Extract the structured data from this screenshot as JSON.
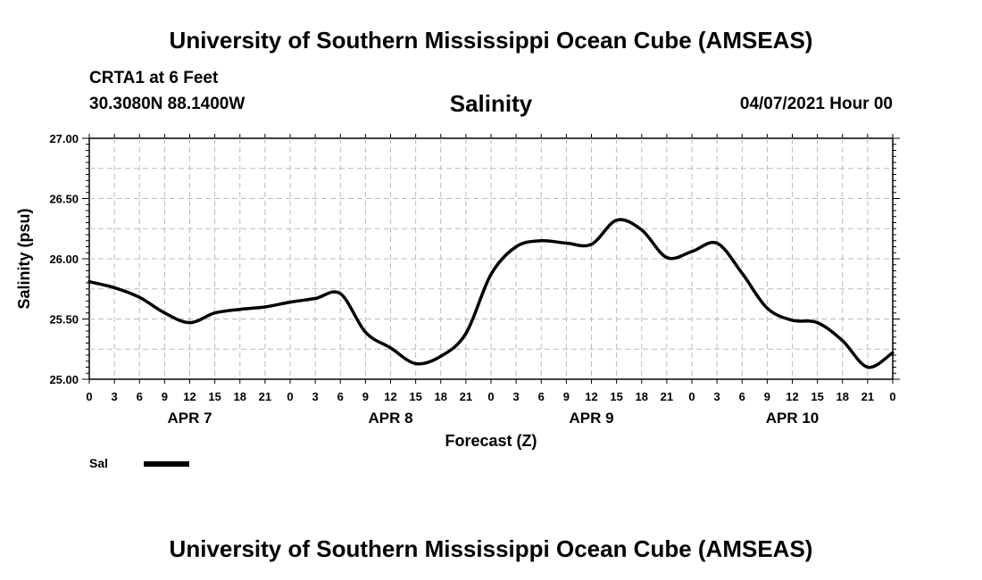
{
  "header": {
    "title": "University of Southern Mississippi Ocean Cube (AMSEAS)",
    "station": "CRTA1 at 6 Feet",
    "coordinates": "30.3080N  88.1400W",
    "variable": "Salinity",
    "datetime": "04/07/2021 Hour 00"
  },
  "footer": {
    "title": "University of Southern Mississippi Ocean Cube (AMSEAS)"
  },
  "chart_data": {
    "type": "line",
    "title": "Salinity",
    "xlabel": "Forecast (Z)",
    "ylabel": "Salinity (psu)",
    "ylim": [
      25.0,
      27.0
    ],
    "xlim": [
      0,
      96
    ],
    "grid": true,
    "y_ticks": [
      "25.00",
      "25.50",
      "26.00",
      "26.50",
      "27.00"
    ],
    "x_tick_labels": [
      "0",
      "3",
      "6",
      "9",
      "12",
      "15",
      "18",
      "21",
      "0",
      "3",
      "6",
      "9",
      "12",
      "15",
      "18",
      "21",
      "0",
      "3",
      "6",
      "9",
      "12",
      "15",
      "18",
      "21",
      "0",
      "3",
      "6",
      "9",
      "12",
      "15",
      "18",
      "21",
      "0"
    ],
    "day_labels": [
      {
        "label": "APR 7",
        "hour": 12
      },
      {
        "label": "APR 8",
        "hour": 36
      },
      {
        "label": "APR 9",
        "hour": 60
      },
      {
        "label": "APR 10",
        "hour": 84
      }
    ],
    "legend": {
      "position": "bottom-left",
      "entries": [
        "Sal"
      ]
    },
    "series": [
      {
        "name": "Sal",
        "x": [
          0,
          3,
          6,
          9,
          12,
          15,
          18,
          21,
          24,
          27,
          30,
          33,
          36,
          39,
          42,
          45,
          48,
          51,
          54,
          57,
          60,
          63,
          66,
          69,
          72,
          75,
          78,
          81,
          84,
          87,
          90,
          93,
          96
        ],
        "values": [
          25.81,
          25.76,
          25.68,
          25.55,
          25.47,
          25.55,
          25.58,
          25.6,
          25.64,
          25.67,
          25.71,
          25.39,
          25.26,
          25.13,
          25.19,
          25.38,
          25.87,
          26.1,
          26.15,
          26.13,
          26.12,
          26.32,
          26.24,
          26.01,
          26.06,
          26.13,
          25.88,
          25.59,
          25.49,
          25.47,
          25.32,
          25.1,
          25.22
        ]
      }
    ]
  }
}
